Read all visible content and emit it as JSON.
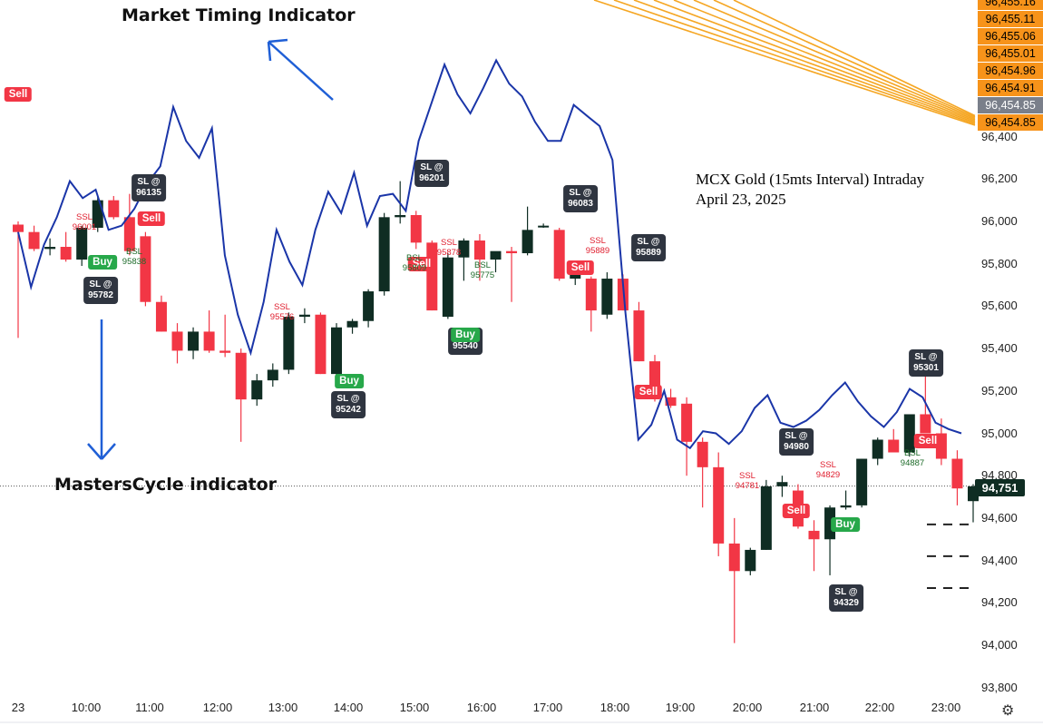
{
  "chart_data": {
    "type": "candlestick",
    "price_axis": {
      "ticks": [
        "96,400",
        "96,200",
        "96,000",
        "95,800",
        "95,600",
        "95,400",
        "95,200",
        "95,000",
        "94,800",
        "94,600",
        "94,400",
        "94,200",
        "94,000",
        "93,800"
      ],
      "ylim": [
        93740,
        96460
      ]
    },
    "time_axis": {
      "ticks": [
        "23",
        "10:00",
        "11:00",
        "12:00",
        "13:00",
        "14:00",
        "15:00",
        "16:00",
        "17:00",
        "18:00",
        "19:00",
        "20:00",
        "21:00",
        "22:00",
        "23:00"
      ]
    },
    "current_price": "94,751",
    "current_price_value": 94751,
    "top_price_labels": [
      "96,455.16",
      "96,455.11",
      "96,455.06",
      "96,455.01",
      "96,454.96",
      "96,454.91",
      "96,454.85",
      "96,454.85"
    ],
    "candles": [
      {
        "o": 95985,
        "h": 96000,
        "l": 95450,
        "c": 95950
      },
      {
        "o": 95950,
        "h": 95980,
        "l": 95860,
        "c": 95870
      },
      {
        "o": 95870,
        "h": 95920,
        "l": 95840,
        "c": 95880
      },
      {
        "o": 95880,
        "h": 95950,
        "l": 95810,
        "c": 95820
      },
      {
        "o": 95820,
        "h": 95980,
        "l": 95790,
        "c": 95970
      },
      {
        "o": 95970,
        "h": 96120,
        "l": 95950,
        "c": 96100
      },
      {
        "o": 96100,
        "h": 96120,
        "l": 96010,
        "c": 96020
      },
      {
        "o": 96020,
        "h": 96130,
        "l": 95840,
        "c": 95860
      },
      {
        "o": 95930,
        "h": 95950,
        "l": 95600,
        "c": 95620
      },
      {
        "o": 95620,
        "h": 95650,
        "l": 95480,
        "c": 95480
      },
      {
        "o": 95480,
        "h": 95520,
        "l": 95330,
        "c": 95390
      },
      {
        "o": 95390,
        "h": 95500,
        "l": 95350,
        "c": 95480
      },
      {
        "o": 95480,
        "h": 95580,
        "l": 95380,
        "c": 95390
      },
      {
        "o": 95390,
        "h": 95560,
        "l": 95360,
        "c": 95380
      },
      {
        "o": 95380,
        "h": 95400,
        "l": 94960,
        "c": 95160
      },
      {
        "o": 95160,
        "h": 95280,
        "l": 95130,
        "c": 95250
      },
      {
        "o": 95250,
        "h": 95330,
        "l": 95220,
        "c": 95300
      },
      {
        "o": 95300,
        "h": 95570,
        "l": 95280,
        "c": 95550
      },
      {
        "o": 95550,
        "h": 95590,
        "l": 95520,
        "c": 95560
      },
      {
        "o": 95560,
        "h": 95570,
        "l": 95280,
        "c": 95280
      },
      {
        "o": 95280,
        "h": 95520,
        "l": 95260,
        "c": 95500
      },
      {
        "o": 95500,
        "h": 95540,
        "l": 95470,
        "c": 95530
      },
      {
        "o": 95530,
        "h": 95680,
        "l": 95500,
        "c": 95670
      },
      {
        "o": 95670,
        "h": 96040,
        "l": 95650,
        "c": 96020
      },
      {
        "o": 96020,
        "h": 96190,
        "l": 95990,
        "c": 96030
      },
      {
        "o": 96030,
        "h": 96050,
        "l": 95870,
        "c": 95900
      },
      {
        "o": 95900,
        "h": 95910,
        "l": 95580,
        "c": 95580
      },
      {
        "o": 95550,
        "h": 95850,
        "l": 95540,
        "c": 95830
      },
      {
        "o": 95830,
        "h": 95920,
        "l": 95720,
        "c": 95910
      },
      {
        "o": 95910,
        "h": 95940,
        "l": 95720,
        "c": 95820
      },
      {
        "o": 95820,
        "h": 95850,
        "l": 95760,
        "c": 95860
      },
      {
        "o": 95860,
        "h": 95880,
        "l": 95620,
        "c": 95850
      },
      {
        "o": 95850,
        "h": 96070,
        "l": 95840,
        "c": 95960
      },
      {
        "o": 95980,
        "h": 95990,
        "l": 95970,
        "c": 95980
      },
      {
        "o": 95960,
        "h": 95970,
        "l": 95720,
        "c": 95730
      },
      {
        "o": 95730,
        "h": 95780,
        "l": 95700,
        "c": 95760
      },
      {
        "o": 95730,
        "h": 95740,
        "l": 95480,
        "c": 95580
      },
      {
        "o": 95560,
        "h": 95760,
        "l": 95540,
        "c": 95730
      },
      {
        "o": 95730,
        "h": 95750,
        "l": 95580,
        "c": 95580
      },
      {
        "o": 95580,
        "h": 95620,
        "l": 95340,
        "c": 95340
      },
      {
        "o": 95340,
        "h": 95370,
        "l": 95150,
        "c": 95170
      },
      {
        "o": 95170,
        "h": 95210,
        "l": 95120,
        "c": 95130
      },
      {
        "o": 95140,
        "h": 95170,
        "l": 94800,
        "c": 94960
      },
      {
        "o": 94960,
        "h": 94980,
        "l": 94650,
        "c": 94840
      },
      {
        "o": 94840,
        "h": 94910,
        "l": 94420,
        "c": 94480
      },
      {
        "o": 94480,
        "h": 94600,
        "l": 94010,
        "c": 94350
      },
      {
        "o": 94350,
        "h": 94460,
        "l": 94330,
        "c": 94450
      },
      {
        "o": 94450,
        "h": 94780,
        "l": 94450,
        "c": 94750
      },
      {
        "o": 94750,
        "h": 94800,
        "l": 94700,
        "c": 94770
      },
      {
        "o": 94730,
        "h": 94760,
        "l": 94550,
        "c": 94560
      },
      {
        "o": 94540,
        "h": 94590,
        "l": 94350,
        "c": 94500
      },
      {
        "o": 94500,
        "h": 94660,
        "l": 94330,
        "c": 94650
      },
      {
        "o": 94650,
        "h": 94730,
        "l": 94640,
        "c": 94660
      },
      {
        "o": 94660,
        "h": 94880,
        "l": 94650,
        "c": 94880
      },
      {
        "o": 94880,
        "h": 94980,
        "l": 94850,
        "c": 94970
      },
      {
        "o": 94970,
        "h": 95020,
        "l": 94920,
        "c": 94910
      },
      {
        "o": 94910,
        "h": 95090,
        "l": 94890,
        "c": 95090
      },
      {
        "o": 95090,
        "h": 95300,
        "l": 95000,
        "c": 95000
      },
      {
        "o": 95000,
        "h": 95070,
        "l": 94850,
        "c": 94880
      },
      {
        "o": 94880,
        "h": 94920,
        "l": 94660,
        "c": 94740
      },
      {
        "o": 94680,
        "h": 94760,
        "l": 94580,
        "c": 94750
      },
      {
        "o": 94750,
        "h": 94780,
        "l": 94720,
        "c": 94751
      }
    ],
    "market_timing_line": [
      95950,
      95690,
      95890,
      96020,
      96190,
      96110,
      96150,
      95960,
      95980,
      96060,
      96180,
      96260,
      96540,
      96380,
      96300,
      96440,
      95840,
      95560,
      95380,
      95620,
      95960,
      95810,
      95700,
      95960,
      96140,
      96040,
      96230,
      95980,
      96120,
      96130,
      96050,
      96380,
      96560,
      96740,
      96600,
      96510,
      96630,
      96760,
      96650,
      96590,
      96470,
      96380,
      96380,
      96550,
      96500,
      96450,
      96290,
      95570,
      94970,
      95040,
      95200,
      94970,
      94930,
      95010,
      95000,
      94950,
      95010,
      95120,
      95180,
      95050,
      95030,
      95060,
      95110,
      95180,
      95240,
      95150,
      95080,
      95030,
      95100,
      95210,
      95170,
      95050,
      95020,
      95000
    ],
    "callouts": [
      {
        "text": "SL @\n96135",
        "price": 96130
      },
      {
        "text": "SL @\n95782",
        "price": 95780
      },
      {
        "text": "SL @\n96201",
        "price": 96190
      },
      {
        "text": "SL @\n96083",
        "price": 96070
      },
      {
        "text": "SL @\n95889",
        "price": 95890
      },
      {
        "text": "SL @\n95540",
        "price": 95540
      },
      {
        "text": "SL @\n95242",
        "price": 95240
      },
      {
        "text": "SL @\n94980",
        "price": 94980
      },
      {
        "text": "SL @\n94329",
        "price": 94329
      },
      {
        "text": "SL @\n95301",
        "price": 95300
      }
    ],
    "signals": [
      {
        "type": "sell",
        "label": "Sell",
        "price": 95985
      },
      {
        "type": "sell",
        "label": "Sell",
        "price": 96100
      },
      {
        "type": "buy",
        "label": "Buy",
        "price": 95790
      },
      {
        "type": "sell",
        "label": "Sell",
        "price": 95900
      },
      {
        "type": "buy",
        "label": "Buy",
        "price": 95280
      },
      {
        "type": "buy",
        "label": "Buy",
        "price": 95540
      },
      {
        "type": "sell",
        "label": "Sell",
        "price": 95960
      },
      {
        "type": "sell",
        "label": "Sell",
        "price": 95580
      },
      {
        "type": "sell",
        "label": "Sell",
        "price": 94730
      },
      {
        "type": "buy",
        "label": "Buy",
        "price": 94640
      },
      {
        "type": "sell",
        "label": "Sell",
        "price": 95000
      }
    ],
    "levels": [
      {
        "type": "ssl",
        "text": "SSL\n96001",
        "price": 96001
      },
      {
        "type": "bsl",
        "text": "BSL\n95838",
        "price": 95838
      },
      {
        "type": "ssl",
        "text": "SSL\n95576",
        "price": 95576
      },
      {
        "type": "bsl",
        "text": "BSL\n95809",
        "price": 95809
      },
      {
        "type": "ssl",
        "text": "SSL\n95878",
        "price": 95878
      },
      {
        "type": "bsl",
        "text": "BSL\n95775",
        "price": 95775
      },
      {
        "type": "ssl",
        "text": "SSL\n95889",
        "price": 95889
      },
      {
        "type": "ssl",
        "text": "SSL\n94781",
        "price": 94781
      },
      {
        "type": "ssl",
        "text": "SSL\n94829",
        "price": 94829
      },
      {
        "type": "bsl",
        "text": "BSL\n94887",
        "price": 94887
      }
    ],
    "dashed_levels": [
      94570,
      94420,
      94270
    ]
  },
  "annotations": {
    "market_timing": "Market Timing Indicator",
    "masters_cycle": "MastersCycle indicator"
  },
  "info": {
    "line1": "MCX Gold (15mts Interval) Intraday",
    "line2": "April 23, 2025"
  },
  "colors": {
    "up": "#0f2d23",
    "down": "#f23645",
    "line": "#1a35a8",
    "fan": "#f5a623",
    "axis_label_bg": "#f7931a",
    "highlight_bg": "#7a7f8a"
  }
}
